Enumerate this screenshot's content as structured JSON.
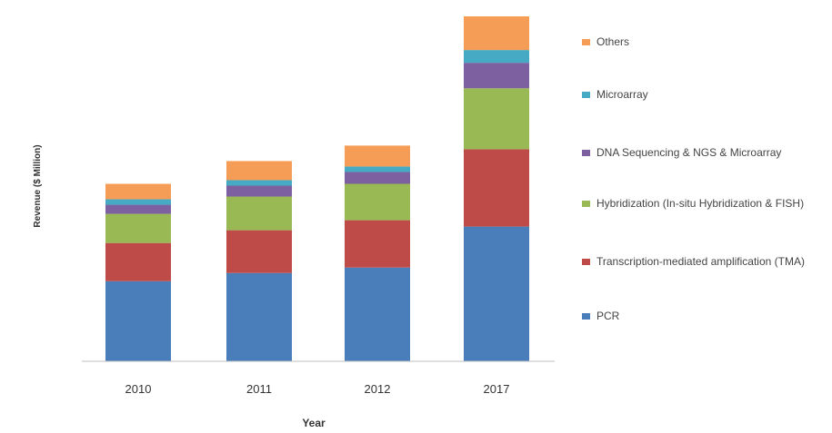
{
  "chart_data": {
    "type": "bar",
    "stacked": true,
    "categories": [
      "2010",
      "2011",
      "2012",
      "2017"
    ],
    "xlabel": "Year",
    "ylabel": "Revenue ($ Million)",
    "ylim": [
      0,
      385
    ],
    "grid": false,
    "legend_position": "right",
    "series": [
      {
        "name": "PCR",
        "color": "#4a7ebb",
        "values": [
          88,
          97,
          103,
          148
        ]
      },
      {
        "name": "Transcription-mediated amplification (TMA)",
        "color": "#be4b48",
        "values": [
          42,
          47,
          52,
          85
        ]
      },
      {
        "name": "Hybridization (In-situ Hybridization & FISH)",
        "color": "#98b954",
        "values": [
          32,
          37,
          40,
          67
        ]
      },
      {
        "name": "DNA Sequencing & NGS & Microarray",
        "color": "#7d60a0",
        "values": [
          10,
          12,
          13,
          28
        ]
      },
      {
        "name": "Microarray",
        "color": "#46aac5",
        "values": [
          6,
          6,
          6,
          14
        ]
      },
      {
        "name": "Others",
        "color": "#f59d56",
        "values": [
          17,
          21,
          23,
          37
        ]
      }
    ]
  }
}
